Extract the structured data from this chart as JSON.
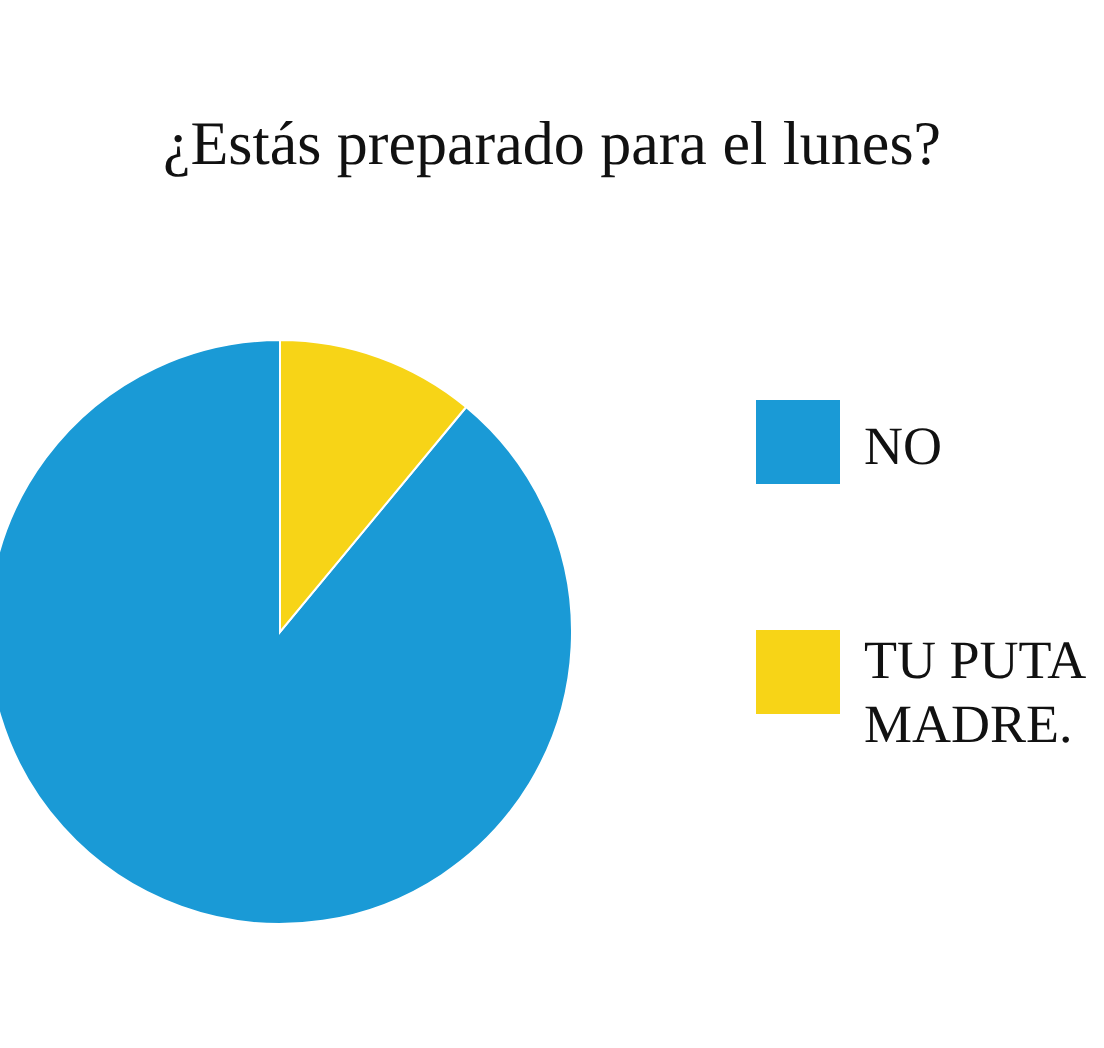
{
  "chart_data": {
    "type": "pie",
    "title": "¿Estás preparado para el lunes?",
    "categories": [
      "NO",
      "TU PUTA MADRE."
    ],
    "values": [
      89,
      11
    ],
    "colors": [
      "#1a9ad6",
      "#f7d417"
    ],
    "legend": "right"
  }
}
